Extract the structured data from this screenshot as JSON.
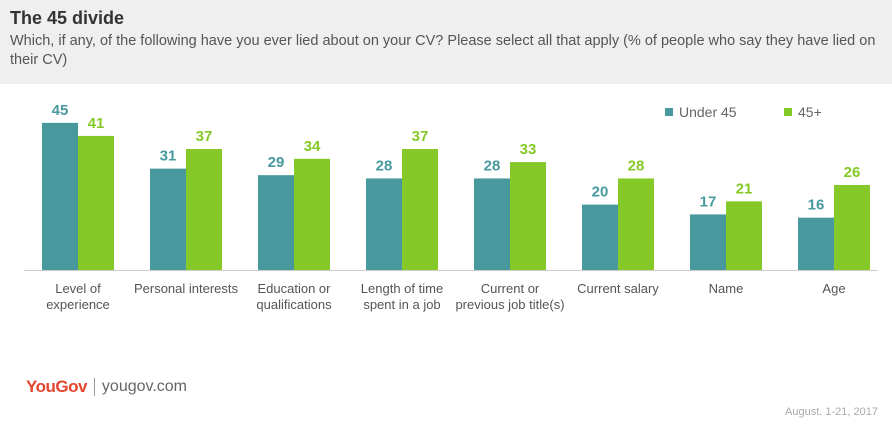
{
  "header": {
    "title": "The 45 divide",
    "subtitle": "Which, if any, of the following have you ever lied about on your CV? Please select all that apply (% of people who say they have lied on their CV)"
  },
  "legend": [
    {
      "label": "Under 45",
      "color": "#47999e"
    },
    {
      "label": "45+",
      "color": "#84c927"
    }
  ],
  "chart_data": {
    "type": "bar",
    "categories": [
      "Level of experience",
      "Personal interests",
      "Education or qualifications",
      "Length of time spent in a job",
      "Current or previous job title(s)",
      "Current salary",
      "Name",
      "Age"
    ],
    "series": [
      {
        "name": "Under 45",
        "color": "#47999e",
        "values": [
          45,
          31,
          29,
          28,
          28,
          20,
          17,
          16
        ]
      },
      {
        "name": "45+",
        "color": "#84c927",
        "values": [
          41,
          37,
          34,
          37,
          33,
          28,
          21,
          26
        ]
      }
    ],
    "ylim": [
      0,
      45
    ],
    "grid": false,
    "legend_position": "top-right"
  },
  "footer": {
    "logo": "YouGov",
    "site": "yougov.com",
    "date": "August. 1-21, 2017"
  }
}
